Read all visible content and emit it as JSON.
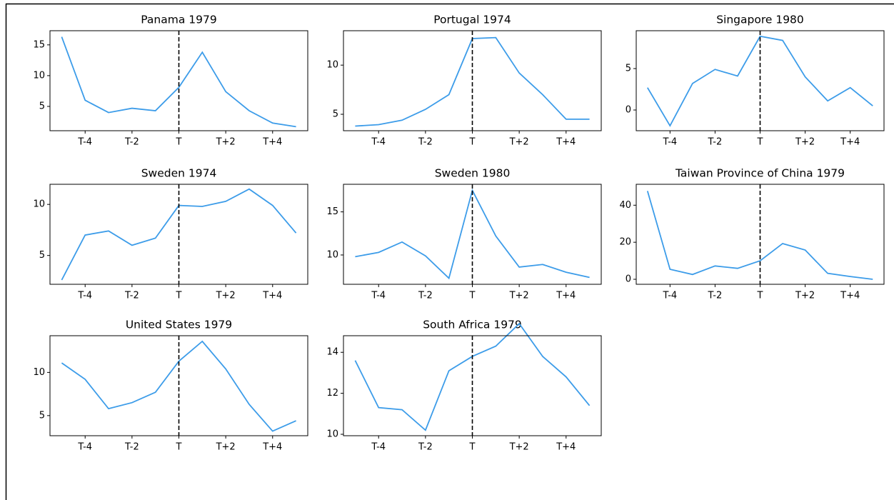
{
  "chart_data": [
    {
      "type": "line",
      "title": "Panama 1979",
      "x": [
        -5,
        -4,
        -3,
        -2,
        -1,
        0,
        1,
        2,
        3,
        4,
        5
      ],
      "vline_x": 0,
      "series": [
        {
          "color": "#3c9ce9",
          "values": [
            16.3,
            6.0,
            4.0,
            4.7,
            4.3,
            8.1,
            13.8,
            7.4,
            4.3,
            2.3,
            1.7
          ]
        }
      ],
      "xlim": [
        -5.5,
        5.5
      ],
      "xticks": [
        {
          "value": -4,
          "label": "T-4"
        },
        {
          "value": -2,
          "label": "T-2"
        },
        {
          "value": 0,
          "label": "T"
        },
        {
          "value": 2,
          "label": "T+2"
        },
        {
          "value": 4,
          "label": "T+4"
        }
      ],
      "ylim": [
        1.05,
        17.3
      ],
      "yticks": [
        5,
        10,
        15
      ]
    },
    {
      "type": "line",
      "title": "Portugal 1974",
      "x": [
        -5,
        -4,
        -3,
        -2,
        -1,
        0,
        1,
        2,
        3,
        4,
        5
      ],
      "vline_x": 0,
      "series": [
        {
          "color": "#3c9ce9",
          "values": [
            3.8,
            3.95,
            4.4,
            5.5,
            7.0,
            12.7,
            12.8,
            9.2,
            7.0,
            4.5,
            4.5
          ]
        }
      ],
      "xlim": [
        -5.5,
        5.5
      ],
      "xticks": [
        {
          "value": -4,
          "label": "T-4"
        },
        {
          "value": -2,
          "label": "T-2"
        },
        {
          "value": 0,
          "label": "T"
        },
        {
          "value": 2,
          "label": "T+2"
        },
        {
          "value": 4,
          "label": "T+4"
        }
      ],
      "ylim": [
        3.33,
        13.5
      ],
      "yticks": [
        5,
        10
      ]
    },
    {
      "type": "line",
      "title": "Singapore 1980",
      "x": [
        -5,
        -4,
        -3,
        -2,
        -1,
        0,
        1,
        2,
        3,
        4,
        5
      ],
      "vline_x": 0,
      "series": [
        {
          "color": "#3c9ce9",
          "values": [
            2.7,
            -1.9,
            3.2,
            4.9,
            4.1,
            8.9,
            8.4,
            4.0,
            1.1,
            2.7,
            0.5
          ]
        }
      ],
      "xlim": [
        -5.5,
        5.5
      ],
      "xticks": [
        {
          "value": -4,
          "label": "T-4"
        },
        {
          "value": -2,
          "label": "T-2"
        },
        {
          "value": 0,
          "label": "T"
        },
        {
          "value": 2,
          "label": "T+2"
        },
        {
          "value": 4,
          "label": "T+4"
        }
      ],
      "ylim": [
        -2.5,
        9.57
      ],
      "yticks": [
        0,
        5
      ]
    },
    {
      "type": "line",
      "title": "Sweden 1974",
      "x": [
        -5,
        -4,
        -3,
        -2,
        -1,
        0,
        1,
        2,
        3,
        4,
        5
      ],
      "vline_x": 0,
      "series": [
        {
          "color": "#3c9ce9",
          "values": [
            2.6,
            7.0,
            7.4,
            6.0,
            6.7,
            9.9,
            9.8,
            10.3,
            11.5,
            9.9,
            7.2
          ]
        }
      ],
      "xlim": [
        -5.5,
        5.5
      ],
      "xticks": [
        {
          "value": -4,
          "label": "T-4"
        },
        {
          "value": -2,
          "label": "T-2"
        },
        {
          "value": 0,
          "label": "T"
        },
        {
          "value": 2,
          "label": "T+2"
        },
        {
          "value": 4,
          "label": "T+4"
        }
      ],
      "ylim": [
        2.18,
        11.97
      ],
      "yticks": [
        5,
        10
      ]
    },
    {
      "type": "line",
      "title": "Sweden 1980",
      "x": [
        -5,
        -4,
        -3,
        -2,
        -1,
        0,
        1,
        2,
        3,
        4,
        5
      ],
      "vline_x": 0,
      "series": [
        {
          "color": "#3c9ce9",
          "values": [
            9.8,
            10.3,
            11.5,
            9.9,
            7.3,
            17.5,
            12.2,
            8.6,
            8.9,
            8.0,
            7.4
          ]
        }
      ],
      "xlim": [
        -5.5,
        5.5
      ],
      "xticks": [
        {
          "value": -4,
          "label": "T-4"
        },
        {
          "value": -2,
          "label": "T-2"
        },
        {
          "value": 0,
          "label": "T"
        },
        {
          "value": 2,
          "label": "T+2"
        },
        {
          "value": 4,
          "label": "T+4"
        }
      ],
      "ylim": [
        6.6,
        18.2
      ],
      "yticks": [
        10,
        15
      ]
    },
    {
      "type": "line",
      "title": "Taiwan Province of China 1979",
      "x": [
        -5,
        -4,
        -3,
        -2,
        -1,
        0,
        1,
        2,
        3,
        4,
        5
      ],
      "vline_x": 0,
      "series": [
        {
          "color": "#3c9ce9",
          "values": [
            47.7,
            5.4,
            2.6,
            7.2,
            5.9,
            10.0,
            19.3,
            15.8,
            3.2,
            1.5,
            0.0
          ]
        }
      ],
      "xlim": [
        -5.5,
        5.5
      ],
      "xticks": [
        {
          "value": -4,
          "label": "T-4"
        },
        {
          "value": -2,
          "label": "T-2"
        },
        {
          "value": 0,
          "label": "T"
        },
        {
          "value": 2,
          "label": "T+2"
        },
        {
          "value": 4,
          "label": "T+4"
        }
      ],
      "ylim": [
        -2.7,
        51.3
      ],
      "yticks": [
        0,
        20,
        40
      ]
    },
    {
      "type": "line",
      "title": "United States 1979",
      "x": [
        -5,
        -4,
        -3,
        -2,
        -1,
        0,
        1,
        2,
        3,
        4,
        5
      ],
      "vline_x": 0,
      "series": [
        {
          "color": "#3c9ce9",
          "values": [
            11.1,
            9.2,
            5.8,
            6.5,
            7.7,
            11.3,
            13.6,
            10.4,
            6.3,
            3.2,
            4.4
          ]
        }
      ],
      "xlim": [
        -5.5,
        5.5
      ],
      "xticks": [
        {
          "value": -4,
          "label": "T-4"
        },
        {
          "value": -2,
          "label": "T-2"
        },
        {
          "value": 0,
          "label": "T"
        },
        {
          "value": 2,
          "label": "T+2"
        },
        {
          "value": 4,
          "label": "T+4"
        }
      ],
      "ylim": [
        2.67,
        14.25
      ],
      "yticks": [
        5,
        10
      ]
    },
    {
      "type": "line",
      "title": "South Africa 1979",
      "x": [
        -5,
        -4,
        -3,
        -2,
        -1,
        0,
        1,
        2,
        3,
        4,
        5
      ],
      "vline_x": 0,
      "series": [
        {
          "color": "#3c9ce9",
          "values": [
            13.6,
            11.3,
            11.2,
            10.2,
            13.1,
            13.8,
            14.3,
            15.4,
            13.8,
            12.8,
            11.4
          ]
        }
      ],
      "xlim": [
        -5.5,
        5.5
      ],
      "xticks": [
        {
          "value": -4,
          "label": "T-4"
        },
        {
          "value": -2,
          "label": "T-2"
        },
        {
          "value": 0,
          "label": "T"
        },
        {
          "value": 2,
          "label": "T+2"
        },
        {
          "value": 4,
          "label": "T+4"
        }
      ],
      "ylim": [
        9.93,
        14.81
      ],
      "yticks": [
        10,
        12,
        14
      ]
    }
  ]
}
